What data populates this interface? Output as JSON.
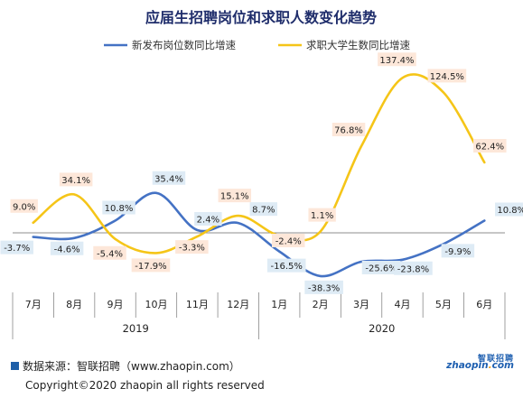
{
  "chart_data": {
    "type": "line",
    "title": "应届生招聘岗位和求职人数变化趋势",
    "categories": [
      "7月",
      "8月",
      "9月",
      "10月",
      "11月",
      "12月",
      "1月",
      "2月",
      "3月",
      "4月",
      "5月",
      "6月"
    ],
    "year_groups": [
      {
        "label": "2019",
        "start": 0,
        "end": 5
      },
      {
        "label": "2020",
        "start": 6,
        "end": 11
      }
    ],
    "ylim": [
      -50,
      150
    ],
    "grid": false,
    "legend_position": "top",
    "series": [
      {
        "name": "新发布岗位数同比增速",
        "color": "#4472c4",
        "values": [
          -3.7,
          -4.6,
          10.8,
          35.4,
          2.4,
          8.7,
          -16.5,
          -38.3,
          -25.6,
          -23.8,
          -9.9,
          10.8
        ],
        "labels": [
          "-3.7%",
          "-4.6%",
          "10.8%",
          "35.4%",
          "2.4%",
          "8.7%",
          "-16.5%",
          "-38.3%",
          "-25.6%",
          "-23.8%",
          "-9.9%",
          "10.8%"
        ],
        "label_fill": "#deebf5"
      },
      {
        "name": "求职大学生数同比增速",
        "color": "#f5c518",
        "values": [
          9.0,
          34.1,
          -5.4,
          -17.9,
          -3.3,
          15.1,
          -2.4,
          1.1,
          76.8,
          137.4,
          124.5,
          62.4
        ],
        "labels": [
          "9.0%",
          "34.1%",
          "-5.4%",
          "-17.9%",
          "-3.3%",
          "15.1%",
          "-2.4%",
          "1.1%",
          "76.8%",
          "137.4%",
          "124.5%",
          "62.4%"
        ],
        "label_fill": "#fde7d9"
      }
    ]
  },
  "footer": {
    "source": "数据来源：智联招聘（www.zhaopin.com）",
    "copyright": "Copyright©2020 zhaopin all rights reserved"
  },
  "logo": {
    "cn": "智联招聘",
    "en_main": "zhaopin",
    "en_dot": ".",
    "en_tail": "com"
  }
}
